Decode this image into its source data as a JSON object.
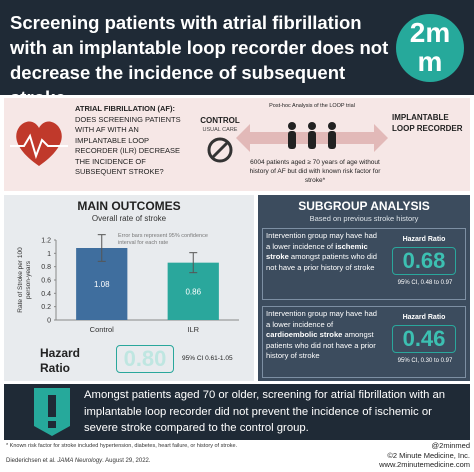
{
  "header": {
    "title": "Screening patients with atrial fibrillation with an implantable loop recorder does not decrease the incidence of subsequent stroke",
    "logo": [
      "2m",
      "m"
    ]
  },
  "background": {
    "question_label": "ATRIAL FIBRILLATION (AF):",
    "question": "DOES SCREENING PATIENTS WITH AF WITH AN IMPLANTABLE LOOP RECORDER (ILR) DECREASE THE INCIDENCE OF SUBSEQUENT STROKE?",
    "control_title": "CONTROL",
    "control_sub": "USUAL CARE",
    "trial": "Post-hoc Analysis of the LOOP trial",
    "intervention": "IMPLANTABLE LOOP RECORDER",
    "population": "6004 patients aged ≥ 70 years of age without history of AF but did with known risk factor for stroke*"
  },
  "outcomes": {
    "title": "MAIN OUTCOMES",
    "subtitle": "Overall rate of stroke",
    "chart": {
      "type": "bar",
      "y_label": [
        "Rate of Stroke per 100",
        "person-years"
      ],
      "note": "Error bars represent 95% confidence interval for each rate",
      "categories": [
        "Control",
        "ILR"
      ],
      "values": [
        1.08,
        0.86
      ],
      "errors": [
        0.2,
        0.15
      ],
      "colors": [
        "#3f6e9e",
        "#2aa79c"
      ],
      "ylim": [
        0,
        1.2
      ],
      "yticks": [
        0,
        0.2,
        0.4,
        0.6,
        0.8,
        1,
        1.2
      ]
    },
    "hazard_label": "Hazard Ratio",
    "hazard_value": "0.80",
    "hazard_ci": "95% CI 0.61-1.05"
  },
  "subgroup": {
    "title": "SUBGROUP ANALYSIS",
    "subtitle": "Based on previous stroke history",
    "groups": [
      {
        "text": [
          "Intervention group may have had a lower incidence of ",
          "ischemic stroke",
          " amongst patients who did not have a prior history of stroke"
        ],
        "hr_label": "Hazard Ratio",
        "hr_value": "0.68",
        "hr_ci": "95% CI, 0.48 to 0.97"
      },
      {
        "text": [
          "Intervention group may have had a lower incidence of ",
          "cardioembolic stroke",
          " amongst patients who did not have a prior history of stroke"
        ],
        "hr_label": "Hazard Ratio",
        "hr_value": "0.46",
        "hr_ci": "95% CI, 0.30 to 0.97"
      }
    ]
  },
  "conclusion": "Amongst patients aged 70 or older, screening for atrial fibrillation with an implantable loop recorder did not prevent the incidence of ischemic or severe stroke compared to the control group.",
  "footer": {
    "footnote": "* Known risk factor for stroke included hypertension, diabetes, heart failure, or history of stroke.",
    "citation": [
      "Diederichsen et al. ",
      "JAMA Neurology",
      ". August 29, 2022."
    ],
    "handle": "@2minmed",
    "copyright": "©2 Minute Medicine, Inc.",
    "website": "www.2minutemedicine.com"
  }
}
